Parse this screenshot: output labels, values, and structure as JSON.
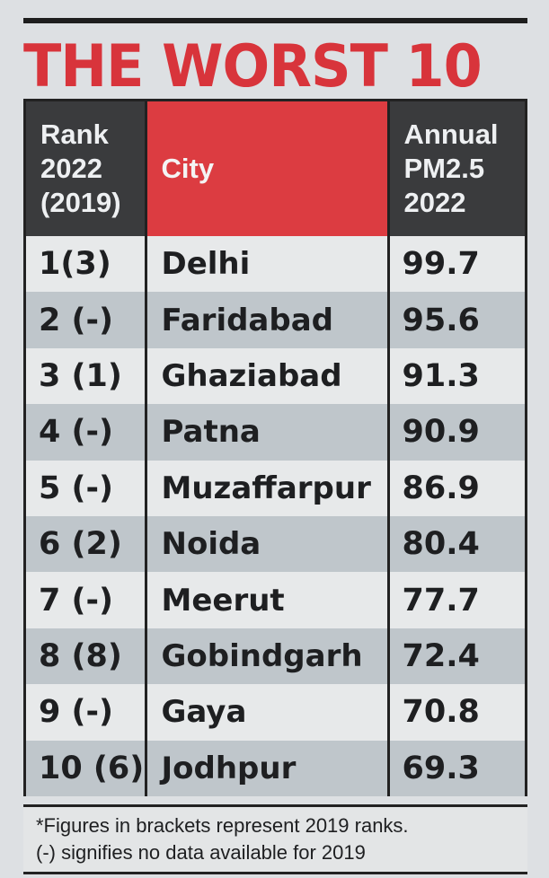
{
  "headline": "THE WORST 10",
  "table": {
    "headers": {
      "rank": "Rank\n2022\n(2019)",
      "city": "City",
      "pm": "Annual\nPM2.5\n2022"
    },
    "rows": [
      {
        "rank": "1(3)",
        "city": "Delhi",
        "pm": "99.7"
      },
      {
        "rank": "2 (-)",
        "city": "Faridabad",
        "pm": "95.6"
      },
      {
        "rank": "3 (1)",
        "city": "Ghaziabad",
        "pm": "91.3"
      },
      {
        "rank": "4 (-)",
        "city": "Patna",
        "pm": "90.9"
      },
      {
        "rank": "5 (-)",
        "city": "Muzaffarpur",
        "pm": "86.9"
      },
      {
        "rank": "6 (2)",
        "city": "Noida",
        "pm": "80.4"
      },
      {
        "rank": "7 (-)",
        "city": "Meerut",
        "pm": "77.7"
      },
      {
        "rank": "8 (8)",
        "city": "Gobindgarh",
        "pm": "72.4"
      },
      {
        "rank": "9 (-)",
        "city": "Gaya",
        "pm": "70.8"
      },
      {
        "rank": "10 (6)",
        "city": "Jodhpur",
        "pm": "69.3"
      }
    ]
  },
  "footnote": {
    "line1": "*Figures in brackets represent 2019 ranks.",
    "line2": "(-) signifies no data available for 2019"
  },
  "colors": {
    "headline_red": "#d8343b",
    "city_header_red": "#dc3c41",
    "header_dark": "#3a3b3d",
    "row_shade": "#bfc6cb"
  }
}
